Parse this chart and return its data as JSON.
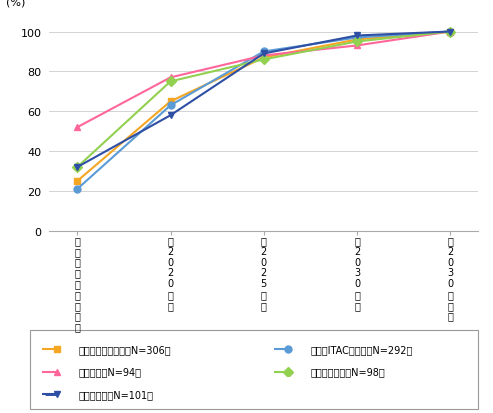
{
  "series": [
    {
      "name": "日本（一般）企業（N=306）",
      "legend_name": "日本（一般）企業（N=306）",
      "values": [
        25,
        65,
        87,
        96,
        100
      ],
      "color": "#F5A623",
      "marker": "s"
    },
    {
      "name": "日本（ITAC）企業（N=292）",
      "legend_name": "日本（ITAC）企業（N=292）",
      "values": [
        21,
        63,
        90,
        97,
        100
      ],
      "color": "#5B9BD5",
      "marker": "o"
    },
    {
      "name": "米国企業（N=94）",
      "legend_name": "米国企業（N=94）",
      "values": [
        52,
        77,
        88,
        93,
        100
      ],
      "color": "#FF6699",
      "marker": "^"
    },
    {
      "name": "イギリス企業（N=98）",
      "legend_name": "イギリス企業（N=98）",
      "values": [
        32,
        75,
        86,
        95,
        100
      ],
      "color": "#92D050",
      "marker": "D"
    },
    {
      "name": "ドイツ企業（N=101）",
      "legend_name": "ドイツ企業（N=101）",
      "values": [
        32,
        58,
        89,
        98,
        100
      ],
      "color": "#2E4FA3",
      "marker": "v"
    }
  ],
  "x_tick_labels": [
    "既\nに\n顕\n在\n化\nし\nて\nい\nる",
    "～\n2\n0\n2\n0\n年\n頃",
    "～\n2\n0\n2\n5\n年\n頃",
    "～\n2\n0\n3\n0\n年\n頃",
    "～\n2\n0\n3\n0\n年\n以\n降"
  ],
  "ylabel": "(%)",
  "ylim": [
    0,
    108
  ],
  "yticks": [
    0,
    20,
    40,
    60,
    80,
    100
  ],
  "background_color": "#ffffff",
  "grid_color": "#cccccc",
  "legend_labels_col1": [
    "日本（一般）企業（N=306）",
    "米国企業（N=94）",
    "ドイツ企業（N=101）"
  ],
  "legend_labels_col2": [
    "日本（ITAC）企業（N=292）",
    "イギリス企業（N=98）"
  ]
}
